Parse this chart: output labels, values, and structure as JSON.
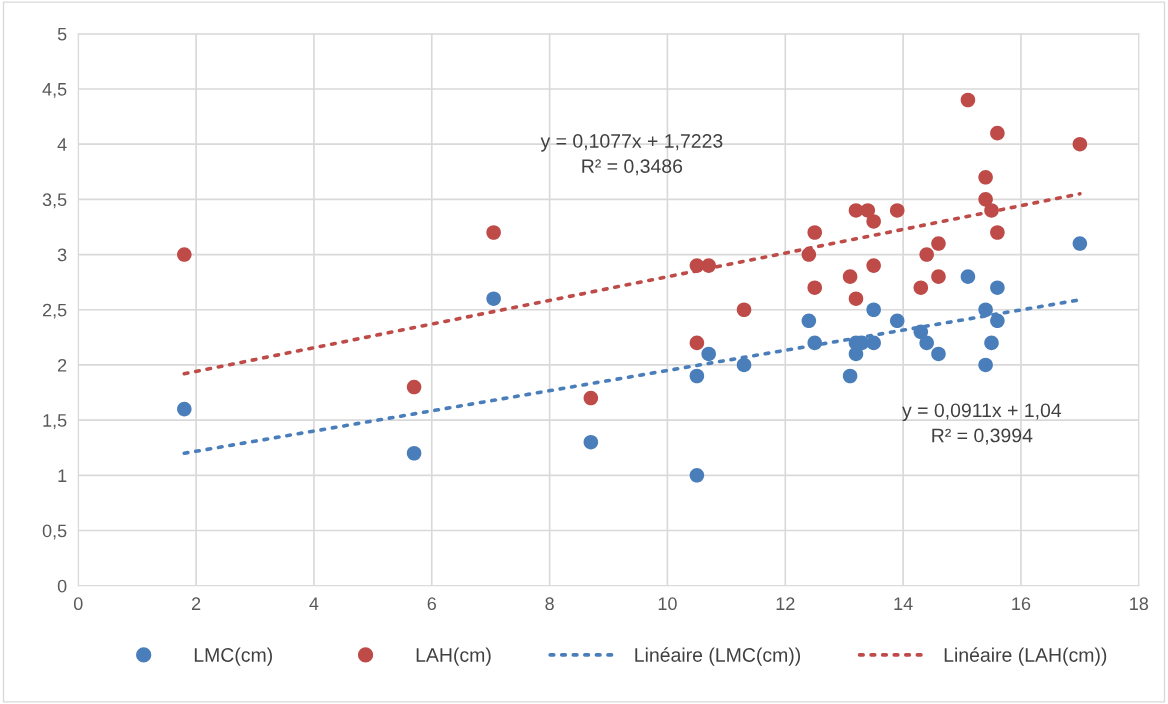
{
  "chart_data": {
    "type": "scatter",
    "xlim": [
      0,
      18
    ],
    "xticks": [
      0,
      2,
      4,
      6,
      8,
      10,
      12,
      14,
      16,
      18
    ],
    "ylim": [
      0,
      5
    ],
    "yticks": [
      0,
      {
        "value": 0.5,
        "label": "0,5"
      },
      1,
      {
        "value": 1.5,
        "label": "1,5"
      },
      2,
      {
        "value": 2.5,
        "label": "2,5"
      },
      3,
      {
        "value": 3.5,
        "label": "3,5"
      },
      4,
      {
        "value": 4.5,
        "label": "4,5"
      },
      5
    ],
    "grid": true,
    "legend": "bottom",
    "series": [
      {
        "name": "LMC(cm)",
        "marker": "circle",
        "color": "#4a7ebb",
        "x": [
          1.8,
          5.7,
          7.05,
          8.7,
          10.5,
          10.5,
          10.7,
          11.3,
          12.4,
          12.5,
          13.1,
          13.2,
          13.2,
          13.3,
          13.5,
          13.5,
          13.9,
          14.3,
          14.4,
          14.6,
          15.1,
          15.4,
          15.4,
          15.5,
          15.6,
          15.6,
          17
        ],
        "values": [
          1.6,
          1.2,
          2.6,
          1.3,
          1.0,
          1.9,
          2.1,
          2.0,
          2.4,
          2.2,
          1.9,
          2.2,
          2.1,
          2.2,
          2.2,
          2.5,
          2.4,
          2.3,
          2.2,
          2.1,
          2.8,
          2.5,
          2.0,
          2.2,
          2.7,
          2.4,
          3.1
        ]
      },
      {
        "name": "LAH(cm)",
        "marker": "circle",
        "color": "#be4b48",
        "x": [
          1.8,
          5.7,
          7.05,
          8.7,
          10.5,
          10.7,
          10.5,
          11.3,
          12.4,
          12.5,
          12.5,
          13.1,
          13.2,
          13.2,
          13.4,
          13.5,
          13.5,
          13.9,
          14.3,
          14.4,
          14.6,
          14.6,
          15.1,
          15.4,
          15.4,
          15.5,
          15.6,
          15.6,
          17
        ],
        "values": [
          3.0,
          1.8,
          3.2,
          1.7,
          2.9,
          2.9,
          2.2,
          2.5,
          3.0,
          3.2,
          2.7,
          2.8,
          3.4,
          2.6,
          3.4,
          3.3,
          2.9,
          3.4,
          2.7,
          3.0,
          3.1,
          2.8,
          4.4,
          3.7,
          3.5,
          3.4,
          4.1,
          3.2,
          4.0
        ]
      },
      {
        "name": "Linéaire (LMC(cm))",
        "type": "line",
        "line_style": "dotted",
        "color": "#4a7ebb",
        "x": [
          1.8,
          17
        ],
        "values": [
          1.2,
          2.59
        ]
      },
      {
        "name": "Linéaire (LAH(cm))",
        "type": "line",
        "line_style": "dotted",
        "color": "#be4b48",
        "x": [
          1.8,
          17
        ],
        "values": [
          1.92,
          3.55
        ]
      }
    ],
    "annotations": [
      "y = 0,1077x + 1,7223\nR² = 0,3486",
      "y = 0,0911x + 1,04\nR² = 0,3994"
    ]
  }
}
